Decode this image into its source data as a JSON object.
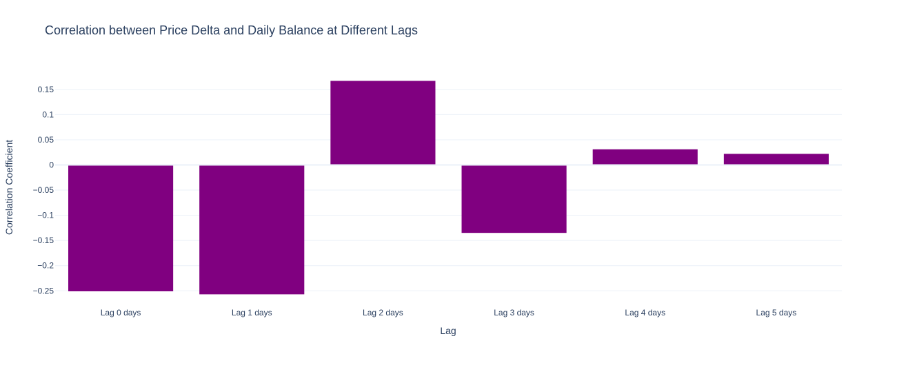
{
  "chart_data": {
    "type": "bar",
    "title": "Correlation between Price Delta and Daily Balance at Different Lags",
    "xlabel": "Lag",
    "ylabel": "Correlation Coefficient",
    "categories": [
      "Lag 0 days",
      "Lag 1 days",
      "Lag 2 days",
      "Lag 3 days",
      "Lag 4 days",
      "Lag 5 days"
    ],
    "values": [
      -0.251,
      -0.257,
      0.167,
      -0.135,
      0.031,
      0.022
    ],
    "ylim": [
      -0.27,
      0.18
    ],
    "yticks": [
      0.15,
      0.1,
      0.05,
      0,
      -0.05,
      -0.1,
      -0.15,
      -0.2,
      -0.25
    ],
    "ytick_labels": [
      "0.15",
      "0.1",
      "0.05",
      "0",
      "−0.05",
      "−0.1",
      "−0.15",
      "−0.2",
      "−0.25"
    ],
    "bar_color": "#800080",
    "grid": true,
    "legend": false
  }
}
